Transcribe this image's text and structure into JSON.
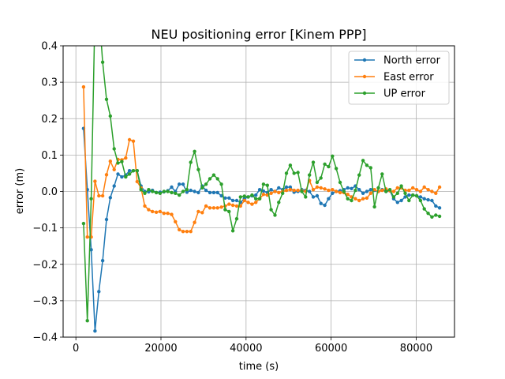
{
  "chart_data": {
    "type": "line",
    "title": "NEU positioning error [Kinem PPP]",
    "xlabel": "time (s)",
    "ylabel": "error (m)",
    "xlim": [
      -3000,
      89000
    ],
    "ylim": [
      -0.4,
      0.4
    ],
    "xticks": [
      0,
      20000,
      40000,
      60000,
      80000
    ],
    "xtick_labels": [
      "0",
      "20000",
      "40000",
      "60000",
      "80000"
    ],
    "yticks": [
      -0.4,
      -0.3,
      -0.2,
      -0.1,
      0.0,
      0.1,
      0.2,
      0.3,
      0.4
    ],
    "ytick_labels": [
      "−0.4",
      "−0.3",
      "−0.2",
      "−0.1",
      "0.0",
      "0.1",
      "0.2",
      "0.3",
      "0.4"
    ],
    "grid": true,
    "legend_position": "top-right",
    "x": [
      1800,
      2700,
      3600,
      4500,
      5400,
      6300,
      7200,
      8100,
      9000,
      9900,
      10800,
      11700,
      12600,
      13500,
      14400,
      15300,
      16200,
      17100,
      18000,
      18900,
      19800,
      20700,
      21600,
      22500,
      23400,
      24300,
      25200,
      26100,
      27000,
      27900,
      28800,
      29700,
      30600,
      31500,
      32400,
      33300,
      34200,
      35100,
      36000,
      36900,
      37800,
      38700,
      39600,
      40500,
      41400,
      42300,
      43200,
      44100,
      45000,
      45900,
      46800,
      47700,
      48600,
      49500,
      50400,
      51300,
      52200,
      53100,
      54000,
      54900,
      55800,
      56700,
      57600,
      58500,
      59400,
      60300,
      61200,
      62100,
      63000,
      63900,
      64800,
      65700,
      66600,
      67500,
      68400,
      69300,
      70200,
      71100,
      72000,
      72900,
      73800,
      74700,
      75600,
      76500,
      77400,
      78300,
      79200,
      80100,
      81000,
      81900,
      82800,
      83700,
      84600,
      85500
    ],
    "series": [
      {
        "name": "North error",
        "color": "#1f77b4",
        "values": [
          0.173,
          0.005,
          -0.16,
          -0.383,
          -0.275,
          -0.19,
          -0.077,
          -0.017,
          0.015,
          0.048,
          0.04,
          0.045,
          0.057,
          0.057,
          0.057,
          0.015,
          0.0,
          -0.001,
          0.003,
          -0.003,
          -0.002,
          -0.001,
          0.002,
          0.012,
          0.0,
          0.02,
          0.02,
          -0.002,
          0.003,
          0.0,
          -0.003,
          0.015,
          0.003,
          -0.003,
          -0.003,
          -0.003,
          -0.012,
          -0.018,
          -0.018,
          -0.025,
          -0.025,
          -0.03,
          -0.02,
          -0.015,
          -0.012,
          -0.01,
          0.005,
          0.001,
          -0.003,
          0.005,
          0.0,
          0.01,
          0.005,
          0.012,
          0.012,
          -0.002,
          0.0,
          0.005,
          0.003,
          0.0,
          -0.015,
          -0.012,
          -0.033,
          -0.038,
          -0.02,
          -0.005,
          0.0,
          0.002,
          0.005,
          0.01,
          0.008,
          0.015,
          0.005,
          -0.005,
          0.0,
          0.005,
          0.003,
          0.0,
          0.005,
          0.0,
          0.002,
          -0.02,
          -0.03,
          -0.025,
          -0.015,
          -0.01,
          -0.01,
          -0.012,
          -0.015,
          -0.02,
          -0.023,
          -0.025,
          -0.04,
          -0.045
        ]
      },
      {
        "name": "East error",
        "color": "#ff7f0e",
        "values": [
          0.287,
          -0.125,
          -0.125,
          0.028,
          -0.012,
          -0.012,
          0.046,
          0.083,
          0.06,
          0.088,
          0.087,
          0.092,
          0.142,
          0.138,
          0.027,
          0.01,
          -0.04,
          -0.05,
          -0.055,
          -0.057,
          -0.055,
          -0.06,
          -0.06,
          -0.063,
          -0.083,
          -0.105,
          -0.11,
          -0.11,
          -0.11,
          -0.085,
          -0.055,
          -0.058,
          -0.04,
          -0.045,
          -0.045,
          -0.045,
          -0.043,
          -0.04,
          -0.035,
          -0.038,
          -0.04,
          -0.04,
          -0.025,
          -0.03,
          -0.035,
          -0.03,
          -0.02,
          -0.008,
          -0.01,
          -0.005,
          0.0,
          -0.003,
          0.0,
          0.003,
          0.005,
          0.003,
          0.003,
          0.002,
          0.0,
          0.03,
          0.005,
          0.012,
          0.01,
          0.007,
          0.003,
          0.005,
          0.0,
          -0.003,
          -0.003,
          -0.008,
          -0.015,
          -0.02,
          -0.025,
          -0.02,
          -0.018,
          -0.005,
          0.005,
          0.0,
          0.003,
          0.007,
          0.002,
          0.0,
          0.01,
          0.01,
          0.003,
          0.003,
          0.01,
          0.005,
          0.0,
          0.012,
          0.005,
          0.0,
          -0.005,
          0.012
        ]
      },
      {
        "name": "UP error",
        "color": "#2ca02c",
        "values": [
          -0.088,
          -0.355,
          -0.02,
          0.5,
          0.5,
          0.355,
          0.253,
          0.207,
          0.117,
          0.078,
          0.082,
          0.04,
          0.048,
          0.057,
          0.057,
          0.005,
          -0.005,
          0.005,
          0.0,
          -0.003,
          -0.005,
          0.0,
          0.0,
          -0.003,
          -0.005,
          -0.01,
          0.0,
          0.005,
          0.08,
          0.11,
          0.06,
          0.01,
          0.02,
          0.035,
          0.045,
          0.035,
          0.02,
          -0.05,
          -0.055,
          -0.108,
          -0.075,
          -0.015,
          -0.013,
          -0.015,
          -0.01,
          -0.02,
          -0.02,
          0.02,
          0.017,
          -0.05,
          -0.065,
          -0.03,
          -0.005,
          0.05,
          0.072,
          0.05,
          0.052,
          0.0,
          -0.015,
          0.045,
          0.08,
          0.025,
          0.037,
          0.075,
          0.068,
          0.097,
          0.063,
          0.025,
          0.0,
          -0.02,
          -0.025,
          0.003,
          0.045,
          0.085,
          0.072,
          0.065,
          -0.042,
          0.01,
          0.048,
          0.0,
          0.005,
          -0.015,
          -0.005,
          0.015,
          -0.005,
          -0.025,
          -0.01,
          -0.012,
          -0.025,
          -0.048,
          -0.06,
          -0.07,
          -0.065,
          -0.068
        ]
      }
    ]
  }
}
